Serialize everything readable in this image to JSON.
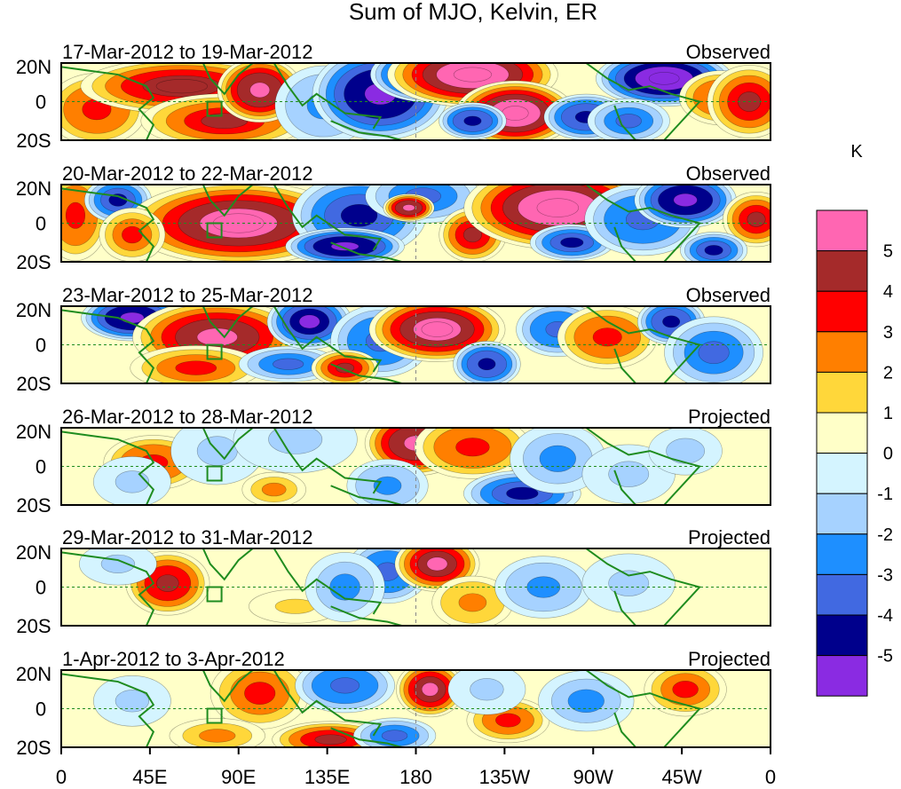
{
  "figure": {
    "title": "Sum of MJO, Kelvin, ER"
  },
  "lat_labels": [
    "20N",
    "0",
    "20S"
  ],
  "lon_labels": [
    "0",
    "45E",
    "90E",
    "135E",
    "180",
    "135W",
    "90W",
    "45W",
    "0"
  ],
  "panels": [
    {
      "period": "17-Mar-2012 to 19-Mar-2012",
      "type": "Observed"
    },
    {
      "period": "20-Mar-2012 to 22-Mar-2012",
      "type": "Observed"
    },
    {
      "period": "23-Mar-2012 to 25-Mar-2012",
      "type": "Observed"
    },
    {
      "period": "26-Mar-2012 to 28-Mar-2012",
      "type": "Projected"
    },
    {
      "period": "29-Mar-2012 to 31-Mar-2012",
      "type": "Projected"
    },
    {
      "period": "1-Apr-2012 to 3-Apr-2012",
      "type": "Projected"
    }
  ],
  "colorbar": {
    "unit": "K",
    "ticks": [
      "5",
      "4",
      "3",
      "2",
      "1",
      "0",
      "-1",
      "-2",
      "-3",
      "-4",
      "-5"
    ],
    "colors": [
      "#ff66b2",
      "#a52a2a",
      "#ff0000",
      "#ff7f00",
      "#ffd73a",
      "#ffffc8",
      "#d4f4ff",
      "#a6d2ff",
      "#1e8fff",
      "#4169e1",
      "#00008c",
      "#8a2be2"
    ]
  },
  "colors": {
    "coastline": "#1f8c1f",
    "frame": "#000000",
    "dashed": "#1f8c1f"
  }
}
